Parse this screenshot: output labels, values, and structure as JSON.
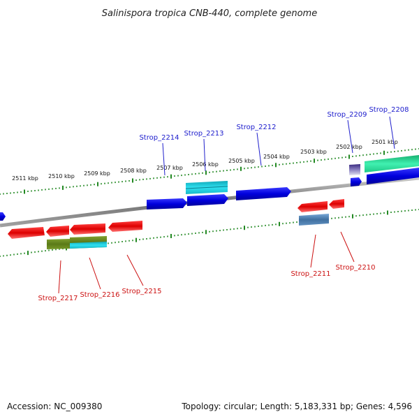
{
  "title": "Salinispora tropica CNB-440, complete genome",
  "footer": {
    "accession": "Accession: NC_009380",
    "summary": "Topology: circular; Length: 5,183,331 bp; Genes: 4,596"
  },
  "tick_labels": [
    "2501 kbp",
    "2502 kbp",
    "2503 kbp",
    "2504 kbp",
    "2505 kbp",
    "2506 kbp",
    "2507 kbp",
    "2508 kbp",
    "2509 kbp",
    "2510 kbp",
    "2511 kbp"
  ],
  "genes_top": [
    "Strop_2208",
    "Strop_2209",
    "Strop_2212",
    "Strop_2213",
    "Strop_2214"
  ],
  "genes_bottom": [
    "Strop_2210",
    "Strop_2211",
    "Strop_2215",
    "Strop_2216",
    "Strop_2217"
  ],
  "colors": {
    "forward_cds": "#0a0adc",
    "reverse_cds": "#e01010",
    "forward_cds_alt_cyan": "#20c8d8",
    "forward_cds_alt_green": "#30e0a0",
    "reverse_cds_alt_steel": "#4878a8",
    "reverse_cds_alt_olive": "#6a8a20",
    "tick": "#228822",
    "backbone": "#808080",
    "label_forward": "#1a1acc",
    "label_reverse": "#cc1111"
  }
}
